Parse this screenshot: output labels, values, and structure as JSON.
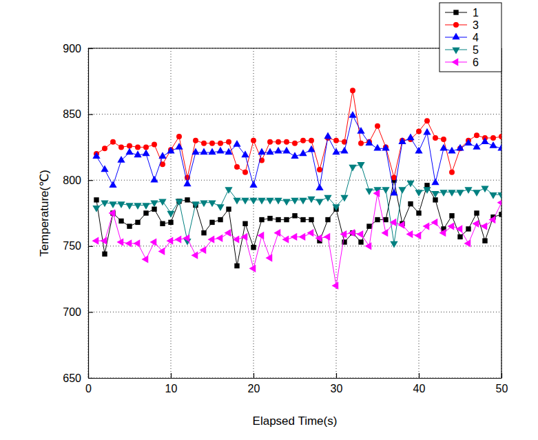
{
  "chart_data": {
    "type": "line",
    "x_label": "Elapsed Time(s)",
    "y_label": "Temperature(℃)",
    "x": [
      1,
      2,
      3,
      4,
      5,
      6,
      7,
      8,
      9,
      10,
      11,
      12,
      13,
      14,
      15,
      16,
      17,
      18,
      19,
      20,
      21,
      22,
      23,
      24,
      25,
      26,
      27,
      28,
      29,
      30,
      31,
      32,
      33,
      34,
      35,
      36,
      37,
      38,
      39,
      40,
      41,
      42,
      43,
      44,
      45,
      46,
      47,
      48,
      49,
      50
    ],
    "series": [
      {
        "name": "1",
        "color": "#000000",
        "marker": "square",
        "values": [
          785,
          744,
          775,
          769,
          765,
          768,
          775,
          778,
          767,
          768,
          784,
          785,
          781,
          760,
          768,
          770,
          778,
          735,
          767,
          749,
          770,
          771,
          770,
          770,
          773,
          770,
          770,
          754,
          770,
          778,
          753,
          760,
          753,
          765,
          770,
          770,
          800,
          767,
          782,
          775,
          796,
          785,
          763,
          773,
          757,
          763,
          775,
          754,
          772,
          774
        ]
      },
      {
        "name": "3",
        "color": "#ff0000",
        "marker": "circle",
        "values": [
          820,
          824,
          829,
          825,
          826,
          825,
          825,
          827,
          812,
          823,
          833,
          802,
          830,
          828,
          828,
          828,
          829,
          810,
          806,
          830,
          815,
          829,
          829,
          829,
          828,
          830,
          830,
          808,
          832,
          830,
          829,
          868,
          828,
          829,
          841,
          825,
          802,
          830,
          831,
          837,
          845,
          832,
          831,
          806,
          824,
          830,
          834,
          832,
          832,
          833
        ]
      },
      {
        "name": "4",
        "color": "#0000ff",
        "marker": "triangle-up",
        "values": [
          818,
          808,
          796,
          815,
          821,
          819,
          820,
          800,
          818,
          822,
          825,
          797,
          821,
          821,
          821,
          822,
          821,
          827,
          819,
          796,
          821,
          821,
          822,
          822,
          818,
          820,
          823,
          794,
          833,
          821,
          822,
          849,
          837,
          828,
          824,
          824,
          790,
          829,
          832,
          822,
          836,
          798,
          824,
          822,
          824,
          828,
          825,
          829,
          826,
          824
        ]
      },
      {
        "name": "5",
        "color": "#008080",
        "marker": "triangle-down",
        "values": [
          779,
          783,
          782,
          782,
          781,
          781,
          781,
          783,
          784,
          775,
          784,
          754,
          782,
          783,
          783,
          780,
          793,
          785,
          785,
          785,
          785,
          785,
          785,
          784,
          785,
          785,
          786,
          784,
          787,
          780,
          787,
          810,
          812,
          792,
          793,
          793,
          752,
          793,
          798,
          791,
          793,
          790,
          791,
          791,
          791,
          793,
          791,
          794,
          789,
          789
        ]
      },
      {
        "name": "6",
        "color": "#ff00ff",
        "marker": "triangle-left",
        "values": [
          754,
          754,
          775,
          753,
          752,
          752,
          740,
          753,
          746,
          754,
          755,
          756,
          743,
          747,
          755,
          756,
          760,
          755,
          757,
          733,
          758,
          741,
          760,
          755,
          757,
          757,
          760,
          756,
          757,
          720,
          759,
          760,
          759,
          750,
          790,
          760,
          768,
          766,
          759,
          758,
          765,
          768,
          760,
          765,
          763,
          752,
          767,
          765,
          770,
          783
        ]
      }
    ],
    "xlim": [
      0,
      50
    ],
    "xticks": [
      0,
      10,
      20,
      30,
      40,
      50
    ],
    "ylim": [
      650,
      900
    ],
    "yticks": [
      650,
      700,
      750,
      800,
      850,
      900
    ],
    "grid": true,
    "legend": "top-right"
  }
}
